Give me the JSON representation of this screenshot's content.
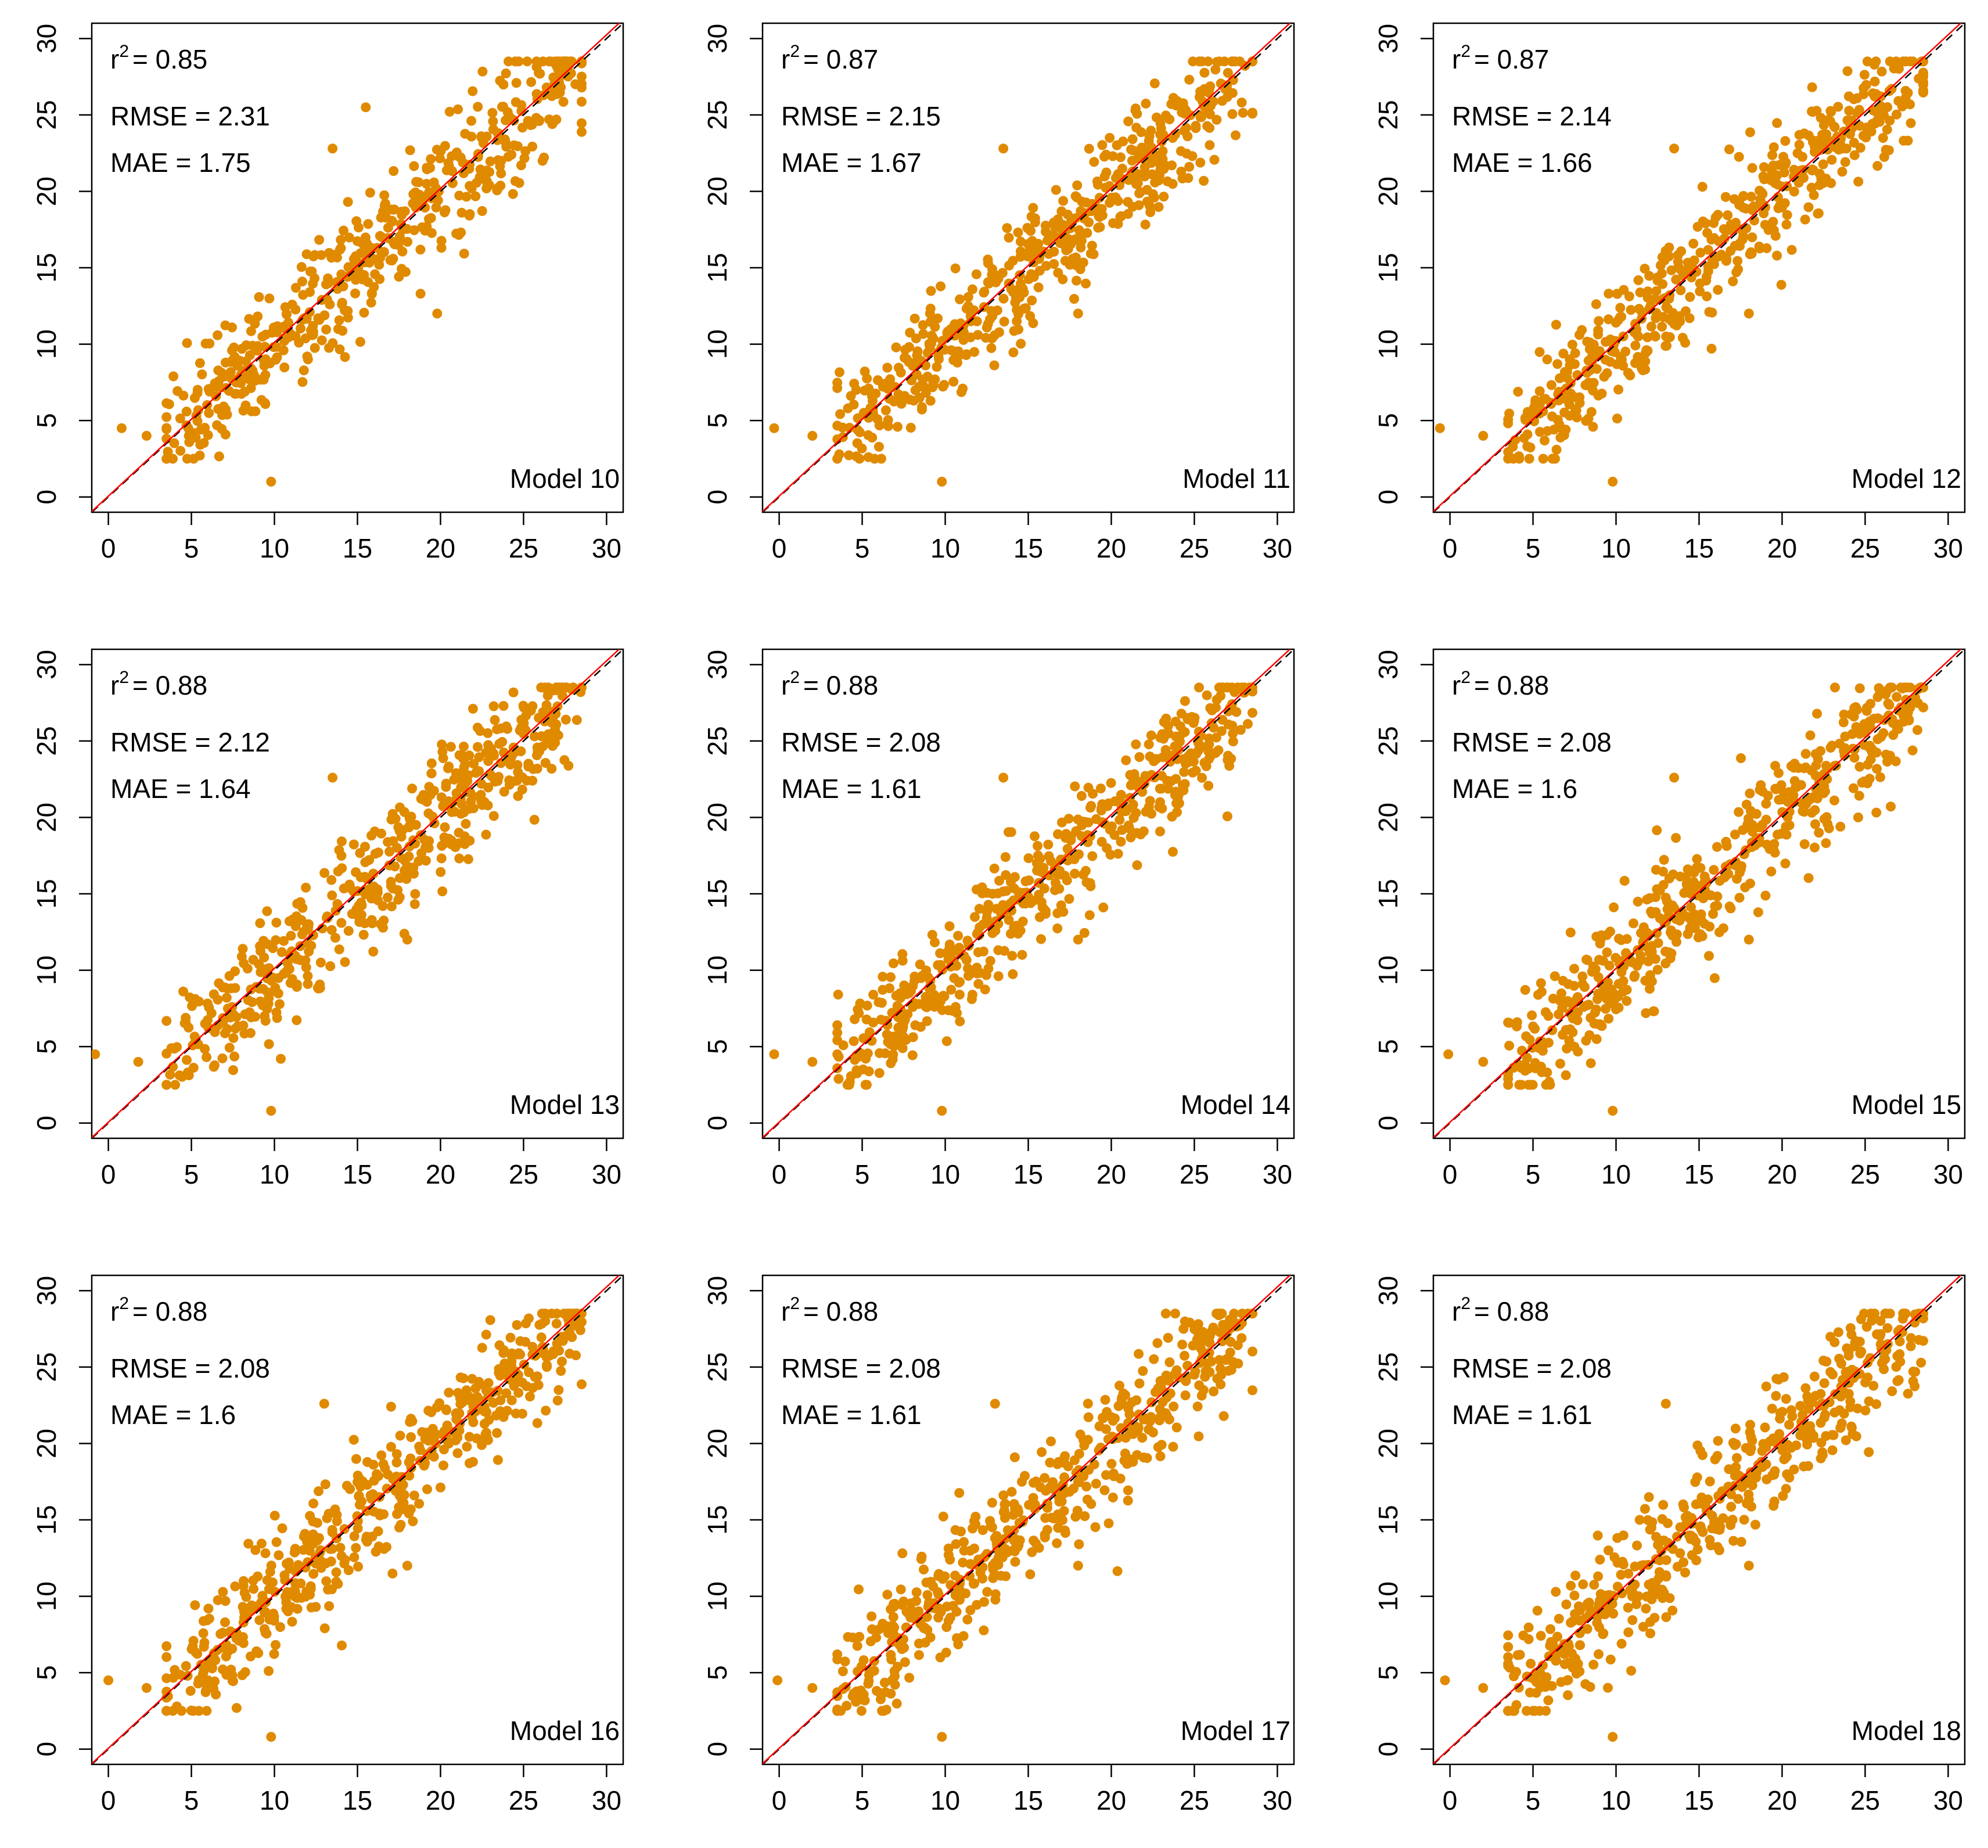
{
  "colors": {
    "points": "#E08A00",
    "identity_line": "#000000",
    "fit_line": "#FF0000",
    "frame": "#000000",
    "background": "#ffffff"
  },
  "chart_data": [
    {
      "type": "scatter",
      "label": "Model 10",
      "r2": "0.85",
      "rmse": "2.31",
      "mae": "1.75",
      "xlim": [
        -1,
        31
      ],
      "ylim": [
        -1,
        31
      ],
      "x_ticks": [
        "0",
        "5",
        "10",
        "15",
        "20",
        "25",
        "30"
      ],
      "y_ticks": [
        "0",
        "5",
        "10",
        "15",
        "20",
        "25",
        "30"
      ],
      "stats": {
        "r2_text": "r",
        "r2_sup": "2",
        "r2_value": "= 0.85",
        "rmse_text": "RMSE = 2.31",
        "mae_text": "MAE = 1.75"
      },
      "outliers": [
        [
          0.8,
          4.5
        ],
        [
          2.3,
          4.0
        ],
        [
          9.8,
          1.0
        ],
        [
          13.5,
          22.8
        ],
        [
          19.8,
          12.0
        ],
        [
          15.5,
          25.5
        ],
        [
          27.5,
          28.5
        ]
      ]
    },
    {
      "type": "scatter",
      "label": "Model 11",
      "r2": "0.87",
      "rmse": "2.15",
      "mae": "1.67",
      "xlim": [
        -1,
        31
      ],
      "ylim": [
        -1,
        31
      ],
      "x_ticks": [
        "0",
        "5",
        "10",
        "15",
        "20",
        "25",
        "30"
      ],
      "y_ticks": [
        "0",
        "5",
        "10",
        "15",
        "20",
        "25",
        "30"
      ],
      "stats": {
        "r2_text": "r",
        "r2_sup": "2",
        "r2_value": "= 0.87",
        "rmse_text": "RMSE = 2.15",
        "mae_text": "MAE = 1.67"
      },
      "outliers": [
        [
          -0.3,
          4.5
        ],
        [
          2.0,
          4.0
        ],
        [
          9.8,
          1.0
        ],
        [
          13.5,
          22.8
        ],
        [
          18.0,
          12.0
        ],
        [
          26.5,
          28.5
        ]
      ]
    },
    {
      "type": "scatter",
      "label": "Model 12",
      "r2": "0.87",
      "rmse": "2.14",
      "mae": "1.66",
      "xlim": [
        -1,
        31
      ],
      "ylim": [
        -1,
        31
      ],
      "x_ticks": [
        "0",
        "5",
        "10",
        "15",
        "20",
        "25",
        "30"
      ],
      "y_ticks": [
        "0",
        "5",
        "10",
        "15",
        "20",
        "25",
        "30"
      ],
      "stats": {
        "r2_text": "r",
        "r2_sup": "2",
        "r2_value": "= 0.87",
        "rmse_text": "RMSE = 2.14",
        "mae_text": "MAE = 1.66"
      },
      "outliers": [
        [
          -0.6,
          4.5
        ],
        [
          2.0,
          4.0
        ],
        [
          9.8,
          1.0
        ],
        [
          13.5,
          22.8
        ],
        [
          18.0,
          12.0
        ],
        [
          26.5,
          28.5
        ]
      ]
    },
    {
      "type": "scatter",
      "label": "Model 13",
      "r2": "0.88",
      "rmse": "2.12",
      "mae": "1.64",
      "xlim": [
        -1,
        31
      ],
      "ylim": [
        -1,
        31
      ],
      "x_ticks": [
        "0",
        "5",
        "10",
        "15",
        "20",
        "25",
        "30"
      ],
      "y_ticks": [
        "0",
        "5",
        "10",
        "15",
        "20",
        "25",
        "30"
      ],
      "stats": {
        "r2_text": "r",
        "r2_sup": "2",
        "r2_value": "= 0.88",
        "rmse_text": "RMSE = 2.12",
        "mae_text": "MAE = 1.64"
      },
      "outliers": [
        [
          -0.8,
          4.5
        ],
        [
          1.8,
          4.0
        ],
        [
          9.8,
          0.8
        ],
        [
          13.5,
          22.6
        ],
        [
          18.0,
          12.0
        ],
        [
          26.5,
          28.5
        ]
      ]
    },
    {
      "type": "scatter",
      "label": "Model 14",
      "r2": "0.88",
      "rmse": "2.08",
      "mae": "1.61",
      "xlim": [
        -1,
        31
      ],
      "ylim": [
        -1,
        31
      ],
      "x_ticks": [
        "0",
        "5",
        "10",
        "15",
        "20",
        "25",
        "30"
      ],
      "y_ticks": [
        "0",
        "5",
        "10",
        "15",
        "20",
        "25",
        "30"
      ],
      "stats": {
        "r2_text": "r",
        "r2_sup": "2",
        "r2_value": "= 0.88",
        "rmse_text": "RMSE = 2.08",
        "mae_text": "MAE = 1.61"
      },
      "outliers": [
        [
          -0.3,
          4.5
        ],
        [
          2.0,
          4.0
        ],
        [
          9.8,
          0.8
        ],
        [
          13.5,
          22.6
        ],
        [
          18.0,
          12.0
        ],
        [
          26.5,
          28.5
        ]
      ]
    },
    {
      "type": "scatter",
      "label": "Model 15",
      "r2": "0.88",
      "rmse": "2.08",
      "mae": "1.6",
      "xlim": [
        -1,
        31
      ],
      "ylim": [
        -1,
        31
      ],
      "x_ticks": [
        "0",
        "5",
        "10",
        "15",
        "20",
        "25",
        "30"
      ],
      "y_ticks": [
        "0",
        "5",
        "10",
        "15",
        "20",
        "25",
        "30"
      ],
      "stats": {
        "r2_text": "r",
        "r2_sup": "2",
        "r2_value": "= 0.88",
        "rmse_text": "RMSE = 2.08",
        "mae_text": "MAE = 1.6"
      },
      "outliers": [
        [
          -0.1,
          4.5
        ],
        [
          2.0,
          4.0
        ],
        [
          9.8,
          0.8
        ],
        [
          13.5,
          22.6
        ],
        [
          18.0,
          12.0
        ],
        [
          26.5,
          28.5
        ]
      ]
    },
    {
      "type": "scatter",
      "label": "Model 16",
      "r2": "0.88",
      "rmse": "2.08",
      "mae": "1.6",
      "xlim": [
        -1,
        31
      ],
      "ylim": [
        -1,
        31
      ],
      "x_ticks": [
        "0",
        "5",
        "10",
        "15",
        "20",
        "25",
        "30"
      ],
      "y_ticks": [
        "0",
        "5",
        "10",
        "15",
        "20",
        "25",
        "30"
      ],
      "stats": {
        "r2_text": "r",
        "r2_sup": "2",
        "r2_value": "= 0.88",
        "rmse_text": "RMSE = 2.08",
        "mae_text": "MAE = 1.6"
      },
      "outliers": [
        [
          0.0,
          4.5
        ],
        [
          2.3,
          4.0
        ],
        [
          9.8,
          0.8
        ],
        [
          13.0,
          22.6
        ],
        [
          18.0,
          12.0
        ],
        [
          27.0,
          28.5
        ]
      ]
    },
    {
      "type": "scatter",
      "label": "Model 17",
      "r2": "0.88",
      "rmse": "2.08",
      "mae": "1.61",
      "xlim": [
        -1,
        31
      ],
      "ylim": [
        -1,
        31
      ],
      "x_ticks": [
        "0",
        "5",
        "10",
        "15",
        "20",
        "25",
        "30"
      ],
      "y_ticks": [
        "0",
        "5",
        "10",
        "15",
        "20",
        "25",
        "30"
      ],
      "stats": {
        "r2_text": "r",
        "r2_sup": "2",
        "r2_value": "= 0.88",
        "rmse_text": "RMSE = 2.08",
        "mae_text": "MAE = 1.61"
      },
      "outliers": [
        [
          -0.1,
          4.5
        ],
        [
          2.0,
          4.0
        ],
        [
          9.8,
          0.8
        ],
        [
          13.0,
          22.6
        ],
        [
          18.0,
          12.0
        ],
        [
          26.5,
          28.5
        ]
      ]
    },
    {
      "type": "scatter",
      "label": "Model 18",
      "r2": "0.88",
      "rmse": "2.08",
      "mae": "1.61",
      "xlim": [
        -1,
        31
      ],
      "ylim": [
        -1,
        31
      ],
      "x_ticks": [
        "0",
        "5",
        "10",
        "15",
        "20",
        "25",
        "30"
      ],
      "y_ticks": [
        "0",
        "5",
        "10",
        "15",
        "20",
        "25",
        "30"
      ],
      "stats": {
        "r2_text": "r",
        "r2_sup": "2",
        "r2_value": "= 0.88",
        "rmse_text": "RMSE = 2.08",
        "mae_text": "MAE = 1.61"
      },
      "outliers": [
        [
          -0.3,
          4.5
        ],
        [
          2.0,
          4.0
        ],
        [
          9.8,
          0.8
        ],
        [
          13.0,
          22.6
        ],
        [
          18.0,
          12.0
        ],
        [
          26.5,
          28.5
        ]
      ]
    }
  ]
}
